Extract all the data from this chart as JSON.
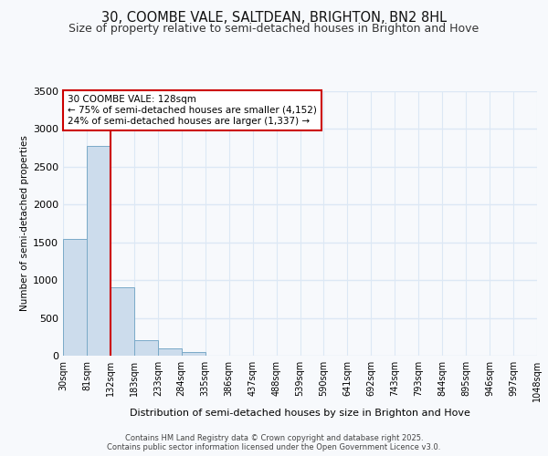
{
  "title_line1": "30, COOMBE VALE, SALTDEAN, BRIGHTON, BN2 8HL",
  "title_line2": "Size of property relative to semi-detached houses in Brighton and Hove",
  "xlabel": "Distribution of semi-detached houses by size in Brighton and Hove",
  "ylabel": "Number of semi-detached properties",
  "bins": [
    "30sqm",
    "81sqm",
    "132sqm",
    "183sqm",
    "233sqm",
    "284sqm",
    "335sqm",
    "386sqm",
    "437sqm",
    "488sqm",
    "539sqm",
    "590sqm",
    "641sqm",
    "692sqm",
    "743sqm",
    "793sqm",
    "844sqm",
    "895sqm",
    "946sqm",
    "997sqm",
    "1048sqm"
  ],
  "values": [
    1550,
    2775,
    900,
    200,
    100,
    50,
    5,
    2,
    0,
    0,
    0,
    0,
    0,
    0,
    0,
    0,
    0,
    0,
    0,
    0
  ],
  "bar_color": "#ccdcec",
  "bar_edge_color": "#7aaac8",
  "property_line_x": 2,
  "annotation_title": "30 COOMBE VALE: 128sqm",
  "annotation_line2": "← 75% of semi-detached houses are smaller (4,152)",
  "annotation_line3": "24% of semi-detached houses are larger (1,337) →",
  "ylim": [
    0,
    3500
  ],
  "yticks": [
    0,
    500,
    1000,
    1500,
    2000,
    2500,
    3000,
    3500
  ],
  "footer_line1": "Contains HM Land Registry data © Crown copyright and database right 2025.",
  "footer_line2": "Contains public sector information licensed under the Open Government Licence v3.0.",
  "background_color": "#f7f9fc",
  "grid_color": "#dce8f5",
  "title_fontsize": 10.5,
  "subtitle_fontsize": 9,
  "annotation_box_color": "#ffffff",
  "annotation_box_edge": "#cc0000",
  "red_line_color": "#cc0000"
}
